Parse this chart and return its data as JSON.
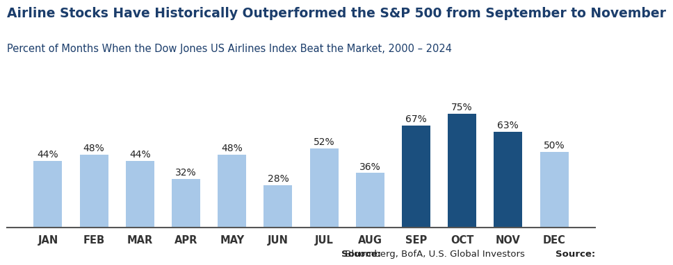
{
  "categories": [
    "JAN",
    "FEB",
    "MAR",
    "APR",
    "MAY",
    "JUN",
    "JUL",
    "AUG",
    "SEP",
    "OCT",
    "NOV",
    "DEC"
  ],
  "values": [
    44,
    48,
    44,
    32,
    48,
    28,
    52,
    36,
    67,
    75,
    63,
    50
  ],
  "bar_colors": [
    "#a8c8e8",
    "#a8c8e8",
    "#a8c8e8",
    "#a8c8e8",
    "#a8c8e8",
    "#a8c8e8",
    "#a8c8e8",
    "#a8c8e8",
    "#1b4f7e",
    "#1b4f7e",
    "#1b4f7e",
    "#a8c8e8"
  ],
  "title": "Airline Stocks Have Historically Outperformed the S&P 500 from September to November",
  "subtitle": "Percent of Months When the Dow Jones US Airlines Index Beat the Market, 2000 – 2024",
  "source_bold": "Source:",
  "source_rest": " Bloomberg, BofA, U.S. Global Investors",
  "title_fontsize": 13.5,
  "subtitle_fontsize": 10.5,
  "label_fontsize": 10,
  "tick_fontsize": 10.5,
  "source_fontsize": 9.5,
  "ylim": [
    0,
    90
  ],
  "background_color": "#ffffff",
  "bar_width": 0.62,
  "title_color": "#1b3d6b",
  "subtitle_color": "#1b3d6b",
  "tick_color": "#333333",
  "label_color": "#222222"
}
